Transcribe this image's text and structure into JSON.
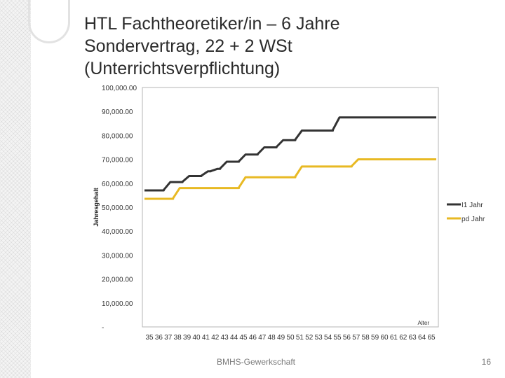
{
  "slide": {
    "title_lines": [
      "HTL Fachtheoretiker/in – 6 Jahre",
      "Sondervertrag, 22 + 2 WSt",
      "(Unterrichtsverpflichtung)"
    ],
    "footer": "BMHS-Gewerkschaft",
    "page_number": "16"
  },
  "chart_data": {
    "type": "line",
    "title": "",
    "xlabel": "Alter",
    "ylabel": "Jahresgehalt",
    "x": [
      35,
      36,
      37,
      38,
      39,
      40,
      41,
      42,
      43,
      44,
      45,
      46,
      47,
      48,
      49,
      50,
      51,
      52,
      53,
      54,
      55,
      56,
      57,
      58,
      59,
      60,
      61,
      62,
      63,
      64,
      65
    ],
    "x_tick_labels": [
      "35",
      "36",
      "37",
      "38",
      "39",
      "40",
      "41",
      "42",
      "43",
      "44",
      "45",
      "46",
      "47",
      "48",
      "49",
      "50",
      "51",
      "52",
      "53",
      "54",
      "55",
      "56",
      "57",
      "58",
      "59",
      "60",
      "61",
      "62",
      "63",
      "64",
      "65"
    ],
    "ylim": [
      0,
      100000
    ],
    "y_ticks": [
      0,
      10000,
      20000,
      30000,
      40000,
      50000,
      60000,
      70000,
      80000,
      90000,
      100000
    ],
    "y_tick_labels": [
      "-",
      "10,000.00",
      "20,000.00",
      "30,000.00",
      "40,000.00",
      "50,000.00",
      "60,000.00",
      "70,000.00",
      "80,000.00",
      "90,000.00",
      "100,000.00"
    ],
    "grid": false,
    "legend_position": "right",
    "series": [
      {
        "name": "I1 Jahr",
        "color": "#333333",
        "values": [
          57000,
          57000,
          60500,
          60500,
          63000,
          63000,
          65000,
          66000,
          69000,
          69000,
          72000,
          72000,
          75000,
          75000,
          78000,
          78000,
          82000,
          82000,
          82000,
          82000,
          87500,
          87500,
          87500,
          87500,
          87500,
          87500,
          87500,
          87500,
          87500,
          87500,
          87500
        ]
      },
      {
        "name": "pd Jahr",
        "color": "#e8b923",
        "values": [
          53500,
          53500,
          53500,
          58000,
          58000,
          58000,
          58000,
          58000,
          58000,
          58000,
          62500,
          62500,
          62500,
          62500,
          62500,
          62500,
          67000,
          67000,
          67000,
          67000,
          67000,
          67000,
          70000,
          70000,
          70000,
          70000,
          70000,
          70000,
          70000,
          70000,
          70000
        ]
      }
    ]
  }
}
